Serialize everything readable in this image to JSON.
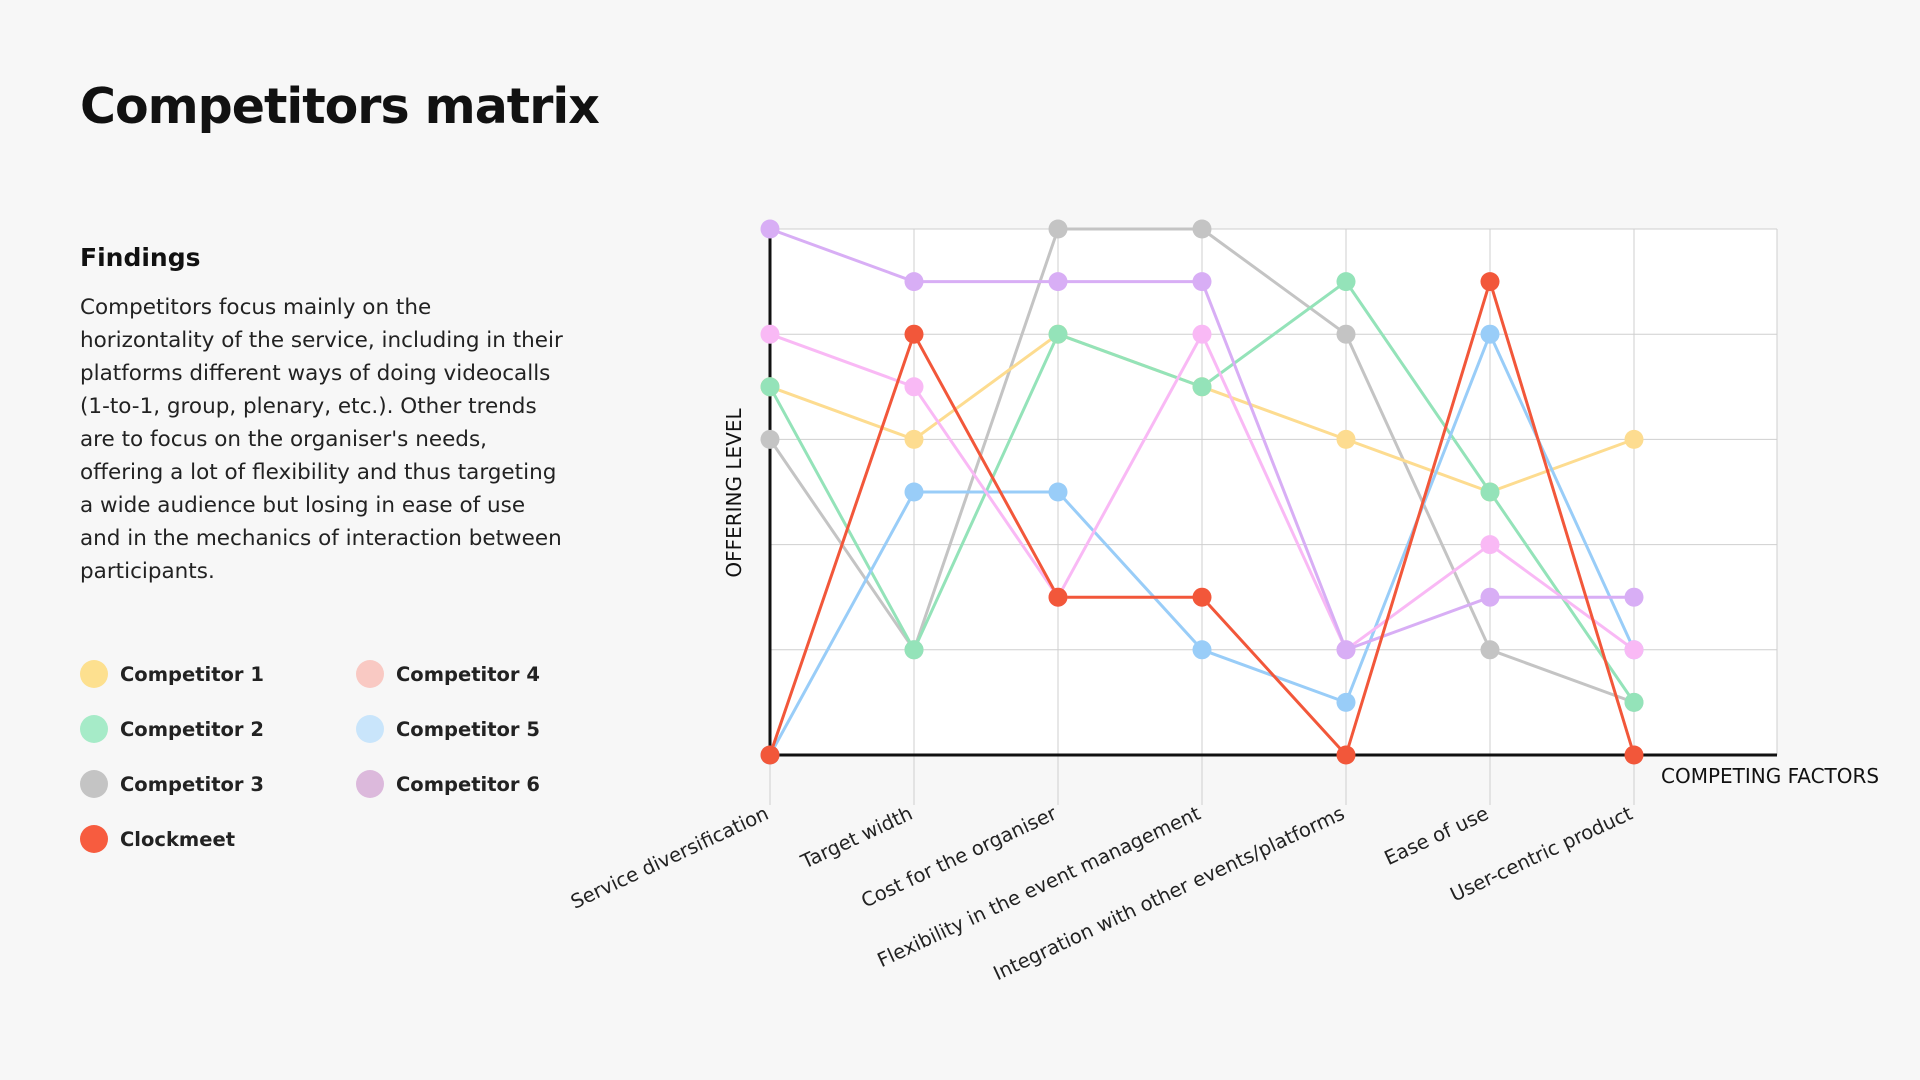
{
  "title": "Competitors matrix",
  "findings": {
    "heading": "Findings",
    "body": "Competitors focus mainly on the horizontality of the service, including in their platforms different ways of doing videocalls (1-to-1, group, plenary, etc.). Other trends are to focus on the organiser's needs, offering a lot of flexibility and thus targeting a wide audience but losing in ease of use and in the mechanics of interaction between participants."
  },
  "legend": [
    {
      "label": "Competitor 1",
      "color": "#fde08f"
    },
    {
      "label": "Competitor 4",
      "color": "#f9c9c3"
    },
    {
      "label": "Competitor 2",
      "color": "#a6ebc8"
    },
    {
      "label": "Competitor 5",
      "color": "#c9e5fb"
    },
    {
      "label": "Competitor 3",
      "color": "#c4c4c4"
    },
    {
      "label": "Competitor 6",
      "color": "#dcb9dc"
    },
    {
      "label": "Clockmeet",
      "color": "#f75c3f"
    }
  ],
  "chart_data": {
    "type": "line",
    "xlabel": "COMPETING FACTORS",
    "ylabel": "OFFERING LEVEL",
    "ylim": [
      0,
      10
    ],
    "grid": true,
    "categories": [
      "Service diversification",
      "Target width",
      "Cost for the organiser",
      "Flexibility in the event management",
      "Integration with other events/platforms",
      "Ease of use",
      "User-centric product"
    ],
    "series": [
      {
        "name": "Competitor 3",
        "color": "#c4c4c4",
        "values": [
          6,
          2,
          10,
          10,
          8,
          2,
          1
        ]
      },
      {
        "name": "Competitor 1",
        "color": "#fddc90",
        "values": [
          7,
          6,
          8,
          7,
          6,
          5,
          6
        ]
      },
      {
        "name": "Competitor 2",
        "color": "#94e3b9",
        "values": [
          7,
          2,
          8,
          7,
          9,
          5,
          1
        ]
      },
      {
        "name": "Competitor 5",
        "color": "#99cdf8",
        "values": [
          0,
          5,
          5,
          2,
          1,
          8,
          2
        ]
      },
      {
        "name": "Competitor 4",
        "color": "#f9b9f5",
        "values": [
          8,
          7,
          3,
          8,
          2,
          4,
          2
        ]
      },
      {
        "name": "Competitor 6",
        "color": "#d8aef5",
        "values": [
          10,
          9,
          9,
          9,
          2,
          3,
          3
        ]
      },
      {
        "name": "Clockmeet",
        "color": "#f2573a",
        "values": [
          0,
          8,
          3,
          3,
          0,
          9,
          0
        ]
      }
    ]
  }
}
